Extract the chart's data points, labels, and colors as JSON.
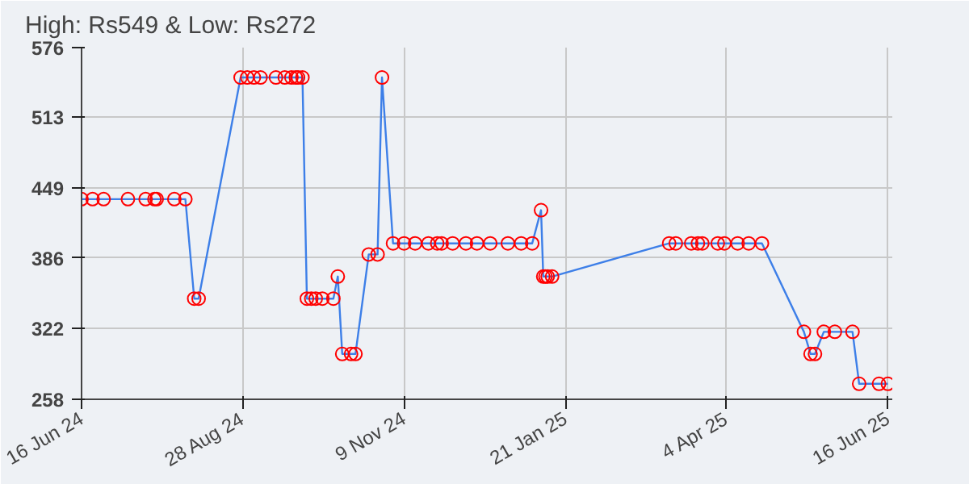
{
  "chart_data": {
    "type": "line",
    "title": "High: Rs549 & Low: Rs272",
    "x": [
      "2024-06-16",
      "2024-06-21",
      "2024-06-26",
      "2024-07-07",
      "2024-07-15",
      "2024-07-19",
      "2024-07-20",
      "2024-07-28",
      "2024-08-02",
      "2024-08-06",
      "2024-08-08",
      "2024-08-27",
      "2024-08-30",
      "2024-09-02",
      "2024-09-05",
      "2024-09-12",
      "2024-09-16",
      "2024-09-19",
      "2024-09-21",
      "2024-09-22",
      "2024-09-24",
      "2024-09-26",
      "2024-09-28",
      "2024-09-30",
      "2024-10-03",
      "2024-10-08",
      "2024-10-10",
      "2024-10-12",
      "2024-10-16",
      "2024-10-18",
      "2024-10-24",
      "2024-10-28",
      "2024-10-30",
      "2024-11-04",
      "2024-11-09",
      "2024-11-14",
      "2024-11-20",
      "2024-11-24",
      "2024-11-26",
      "2024-12-01",
      "2024-12-07",
      "2024-12-12",
      "2024-12-18",
      "2024-12-26",
      "2025-01-01",
      "2025-01-06",
      "2025-01-10",
      "2025-01-11",
      "2025-01-12",
      "2025-01-13",
      "2025-01-15",
      "2025-03-09",
      "2025-03-12",
      "2025-03-19",
      "2025-03-22",
      "2025-03-24",
      "2025-03-31",
      "2025-04-03",
      "2025-04-09",
      "2025-04-14",
      "2025-04-20",
      "2025-05-09",
      "2025-05-12",
      "2025-05-14",
      "2025-05-18",
      "2025-05-23",
      "2025-05-31",
      "2025-06-03",
      "2025-06-12",
      "2025-06-16"
    ],
    "series": [
      {
        "color": "#3d7fe8",
        "values": [
          439,
          439,
          439,
          439,
          439,
          439,
          439,
          439,
          439,
          349,
          349,
          549,
          549,
          549,
          549,
          549,
          549,
          549,
          549,
          549,
          549,
          349,
          349,
          349,
          349,
          349,
          369,
          299,
          299,
          299,
          389,
          389,
          549,
          399,
          399,
          399,
          399,
          399,
          399,
          399,
          399,
          399,
          399,
          399,
          399,
          399,
          429,
          369,
          369,
          369,
          369,
          399,
          399,
          399,
          399,
          399,
          399,
          399,
          399,
          399,
          399,
          319,
          299,
          299,
          319,
          319,
          319,
          272,
          272,
          272
        ]
      }
    ],
    "xlim": [
      "2024-06-16",
      "2025-06-18"
    ],
    "xticks": [
      {
        "value": "2024-06-16",
        "label": "16 Jun 24"
      },
      {
        "value": "2024-08-28",
        "label": "28 Aug 24"
      },
      {
        "value": "2024-11-09",
        "label": "9 Nov 24"
      },
      {
        "value": "2025-01-21",
        "label": "21 Jan 25"
      },
      {
        "value": "2025-04-04",
        "label": "4 Apr 25"
      },
      {
        "value": "2025-06-16",
        "label": "16 Jun 25"
      }
    ],
    "ylim": [
      258,
      576
    ],
    "yticks": [
      258,
      322,
      386,
      449,
      513,
      576
    ],
    "grid": true,
    "marker": "circle",
    "line_style": "solid"
  }
}
